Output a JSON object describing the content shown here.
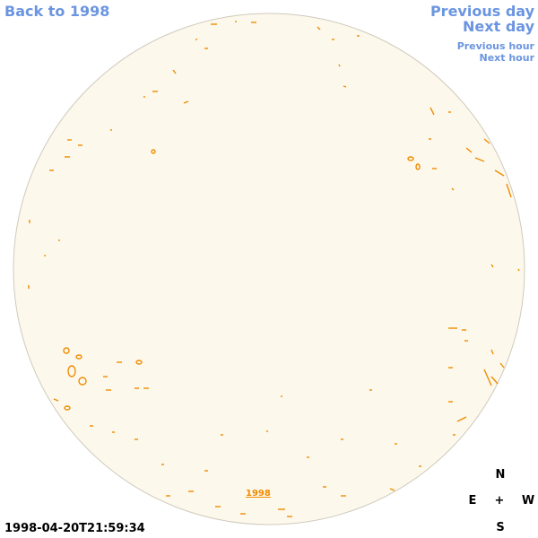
{
  "nav": {
    "back": "Back to 1998",
    "previous_day": "Previous day",
    "next_day": "Next day",
    "previous_hour": "Previous hour",
    "next_hour": "Next hour"
  },
  "disk_label": "1998",
  "timestamp": "1998-04-20T21:59:34",
  "compass": {
    "north": "N",
    "east": "E",
    "center": "+",
    "west": "W",
    "south": "S"
  }
}
